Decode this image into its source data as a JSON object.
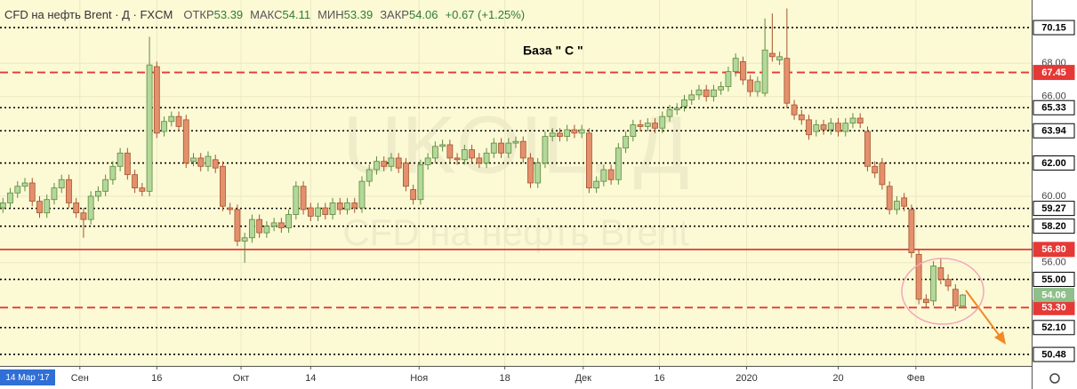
{
  "chart_data": {
    "type": "candlestick",
    "header": {
      "symbol": "CFD на нефть Brent · Д · FXCM",
      "open_label": "ОТКР",
      "high_label": "МАКС",
      "low_label": "МИН",
      "close_label": "ЗАКР",
      "change": "+0.67 (+1.25%)"
    },
    "annotation": "База  \" С \"",
    "watermark": [
      "UKOIL, Д",
      "CFD на нефть Brent"
    ],
    "crosshair_label": "14 Мар '17",
    "last_label": "54.06",
    "up_color": "#b3d89a",
    "down_color": "#e4906c",
    "grid": true,
    "xlim": [
      -0.4,
      140.4
    ],
    "ylim": [
      49.79,
      71.81
    ],
    "xticks": [
      {
        "value": 10.5,
        "label": "Сен"
      },
      {
        "value": 21,
        "label": "16"
      },
      {
        "value": 32.5,
        "label": "Окт"
      },
      {
        "value": 42,
        "label": "14"
      },
      {
        "value": 56.8,
        "label": "Ноя"
      },
      {
        "value": 68.5,
        "label": "18"
      },
      {
        "value": 79.2,
        "label": "Дек"
      },
      {
        "value": 89.6,
        "label": "16"
      },
      {
        "value": 101.5,
        "label": "2020"
      },
      {
        "value": 114,
        "label": "20"
      },
      {
        "value": 124.6,
        "label": "Фев"
      }
    ],
    "yticks": [
      {
        "value": 68,
        "label": "68.00"
      },
      {
        "value": 66,
        "label": "66.00"
      },
      {
        "value": 60,
        "label": "60.00"
      },
      {
        "value": 56,
        "label": "56.00"
      }
    ],
    "levels": [
      {
        "value": 70.15,
        "label": "70.15",
        "line": "dotted",
        "color": "#000000"
      },
      {
        "value": 67.45,
        "label": "67.45",
        "line": "dashed",
        "color": "#e53935"
      },
      {
        "value": 65.33,
        "label": "65.33",
        "line": "dotted",
        "color": "#000000"
      },
      {
        "value": 63.94,
        "label": "63.94",
        "line": "dotted",
        "color": "#000000"
      },
      {
        "value": 62,
        "label": "62.00",
        "line": "dotted",
        "color": "#000000"
      },
      {
        "value": 59.27,
        "label": "59.27",
        "line": "dotted",
        "color": "#000000"
      },
      {
        "value": 58.2,
        "label": "58.20",
        "line": "dotted",
        "color": "#000000"
      },
      {
        "value": 56.8,
        "label": "56.80",
        "line": "solid",
        "color": "#e53935"
      },
      {
        "value": 55,
        "label": "55.00",
        "line": "dotted",
        "color": "#000000"
      },
      {
        "value": 53.3,
        "label": "53.30",
        "line": "dashed",
        "color": "#e53935"
      },
      {
        "value": 52.1,
        "label": "52.10",
        "line": "dotted",
        "color": "#000000"
      },
      {
        "value": 50.48,
        "label": "50.48",
        "line": "dotted",
        "color": "#000000"
      }
    ],
    "open": [
      59.3,
      59.6,
      60.2,
      60.6,
      60.8,
      59.7,
      59.0,
      59.8,
      60.5,
      61.0,
      59.6,
      59.0,
      58.6,
      60.0,
      60.3,
      61.0,
      61.8,
      62.6,
      61.3,
      60.5,
      60.3,
      67.8,
      63.9,
      64.5,
      64.8,
      64.6,
      62.1,
      62.3,
      61.8,
      62.2,
      61.8,
      59.3,
      59.2,
      57.3,
      57.5,
      58.6,
      57.8,
      58.2,
      58.4,
      58.1,
      58.9,
      60.6,
      59.3,
      58.8,
      59.3,
      58.9,
      59.6,
      59.2,
      59.6,
      59.3,
      60.9,
      61.6,
      62.1,
      61.8,
      62.3,
      62.0,
      60.4,
      59.8,
      61.9,
      62.3,
      63.0,
      63.1,
      62.3,
      62.2,
      62.8,
      62.3,
      62.0,
      62.6,
      63.2,
      62.6,
      63.2,
      63.3,
      62.3,
      60.8,
      62.0,
      63.6,
      63.8,
      63.6,
      64.0,
      63.8,
      63.8,
      60.5,
      60.9,
      61.6,
      61.0,
      62.9,
      63.6,
      64.3,
      64.2,
      64.4,
      64.1,
      64.8,
      65.2,
      65.4,
      65.8,
      66.1,
      66.4,
      66.0,
      66.4,
      66.6,
      67.5,
      68.1,
      67.0,
      66.3,
      66.2,
      68.6,
      68.2,
      68.3,
      65.5,
      64.9,
      64.6,
      63.9,
      64.3,
      64.0,
      64.4,
      63.9,
      64.4,
      64.7,
      63.9,
      61.8,
      62.0,
      60.6,
      59.2,
      59.9,
      59.2,
      56.5,
      53.8,
      53.7,
      55.7,
      55.0,
      54.4,
      53.39
    ],
    "high": [
      59.9,
      60.5,
      60.9,
      61.1,
      61.1,
      60.0,
      60.1,
      60.8,
      61.3,
      61.3,
      59.9,
      59.3,
      60.3,
      60.6,
      61.3,
      62.1,
      62.9,
      62.9,
      61.6,
      60.8,
      69.6,
      68.1,
      64.8,
      65.1,
      65.1,
      64.9,
      62.6,
      62.6,
      62.7,
      62.5,
      62.1,
      59.6,
      59.5,
      57.8,
      58.9,
      58.9,
      58.5,
      58.7,
      58.7,
      59.2,
      60.9,
      60.9,
      59.6,
      59.6,
      59.6,
      59.9,
      59.9,
      59.9,
      59.9,
      61.2,
      61.9,
      62.4,
      62.4,
      62.6,
      62.6,
      62.3,
      60.7,
      62.2,
      62.6,
      63.3,
      63.4,
      63.4,
      62.6,
      63.1,
      63.1,
      62.6,
      62.9,
      63.5,
      63.5,
      63.5,
      63.6,
      63.6,
      62.6,
      62.3,
      63.9,
      64.1,
      64.1,
      64.3,
      64.3,
      64.3,
      64.1,
      61.2,
      61.9,
      61.9,
      63.2,
      63.9,
      64.6,
      64.6,
      64.7,
      64.7,
      65.1,
      65.5,
      65.6,
      66.1,
      66.4,
      66.7,
      66.7,
      66.7,
      66.9,
      67.8,
      68.6,
      68.4,
      67.3,
      67.2,
      70.7,
      71.0,
      68.7,
      71.3,
      65.8,
      65.2,
      64.9,
      64.6,
      64.6,
      64.7,
      64.7,
      64.7,
      65.0,
      65.0,
      64.2,
      62.1,
      62.3,
      60.9,
      60.0,
      60.2,
      59.5,
      56.8,
      54.1,
      56.1,
      56.3,
      55.3,
      54.7,
      54.11
    ],
    "low": [
      59.0,
      59.3,
      59.9,
      60.3,
      59.4,
      58.7,
      58.7,
      59.5,
      60.2,
      59.3,
      58.7,
      57.5,
      58.3,
      59.7,
      60.0,
      60.7,
      61.5,
      61.0,
      60.2,
      60.0,
      60.0,
      63.5,
      63.6,
      64.2,
      63.9,
      61.7,
      61.8,
      61.5,
      61.5,
      61.4,
      59.1,
      58.9,
      57.0,
      56.0,
      57.2,
      57.5,
      57.5,
      57.9,
      57.8,
      57.8,
      58.6,
      58.9,
      58.5,
      58.5,
      58.6,
      58.6,
      58.9,
      58.9,
      59.0,
      59.0,
      60.6,
      61.3,
      61.5,
      61.5,
      61.4,
      60.3,
      59.5,
      59.5,
      61.6,
      62.0,
      62.7,
      62.0,
      61.9,
      61.9,
      62.0,
      61.7,
      61.7,
      62.3,
      62.3,
      62.3,
      62.9,
      62.0,
      60.5,
      60.5,
      61.7,
      63.3,
      63.3,
      63.3,
      63.5,
      63.5,
      60.2,
      60.2,
      60.6,
      60.7,
      60.7,
      62.6,
      63.3,
      63.9,
      63.9,
      63.8,
      63.8,
      64.5,
      64.9,
      65.1,
      65.5,
      65.8,
      65.7,
      65.7,
      66.1,
      66.3,
      67.2,
      66.7,
      66.0,
      66.0,
      66.0,
      68.1,
      67.9,
      65.3,
      64.6,
      64.3,
      63.4,
      63.6,
      63.7,
      63.7,
      63.6,
      63.6,
      64.1,
      64.1,
      61.5,
      61.1,
      60.4,
      58.9,
      58.9,
      59.1,
      56.3,
      53.5,
      53.3,
      53.4,
      54.7,
      54.3,
      53.1,
      53.39
    ],
    "close": [
      59.6,
      60.2,
      60.6,
      60.8,
      59.7,
      59.0,
      59.8,
      60.5,
      61.0,
      59.6,
      59.0,
      58.6,
      60.0,
      60.3,
      61.0,
      61.8,
      62.6,
      61.3,
      60.5,
      60.3,
      67.9,
      63.8,
      64.5,
      64.8,
      64.2,
      62.0,
      62.3,
      61.8,
      62.4,
      61.7,
      59.4,
      59.2,
      57.3,
      57.5,
      58.6,
      57.8,
      58.2,
      58.4,
      58.1,
      58.9,
      60.6,
      59.2,
      58.8,
      59.3,
      58.9,
      59.6,
      59.2,
      59.6,
      59.3,
      60.9,
      61.6,
      62.1,
      61.8,
      62.3,
      61.7,
      60.6,
      59.8,
      61.9,
      62.3,
      63.0,
      63.1,
      62.3,
      62.2,
      62.8,
      62.3,
      62.0,
      62.6,
      63.2,
      62.6,
      63.2,
      63.3,
      62.3,
      60.8,
      62.0,
      63.6,
      63.8,
      63.6,
      64.0,
      63.8,
      64.0,
      60.5,
      60.9,
      61.6,
      61.0,
      62.9,
      63.6,
      64.3,
      64.2,
      64.4,
      64.1,
      64.8,
      65.2,
      65.3,
      65.8,
      66.1,
      66.4,
      66.0,
      66.4,
      66.6,
      67.5,
      68.3,
      67.0,
      66.3,
      66.9,
      68.8,
      68.4,
      68.4,
      65.6,
      64.9,
      64.6,
      63.7,
      64.3,
      64.0,
      64.4,
      63.9,
      64.4,
      64.7,
      64.4,
      61.8,
      61.4,
      60.7,
      59.2,
      59.7,
      59.4,
      56.6,
      53.8,
      53.6,
      55.8,
      55.0,
      54.6,
      53.4,
      54.06
    ]
  }
}
